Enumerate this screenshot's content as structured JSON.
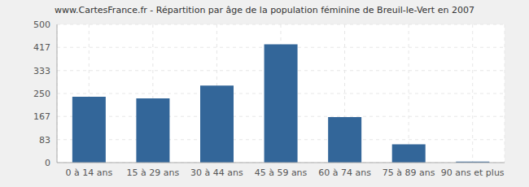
{
  "chart_data": {
    "type": "bar",
    "title": "www.CartesFrance.fr - Répartition par âge de la population féminine de Breuil-le-Vert en 2007",
    "categories": [
      "0 à 14 ans",
      "15 à 29 ans",
      "30 à 44 ans",
      "45 à 59 ans",
      "60 à 74 ans",
      "75 à 89 ans",
      "90 ans et plus"
    ],
    "values": [
      238,
      232,
      279,
      428,
      165,
      66,
      4
    ],
    "color": "#336699",
    "ylim": [
      0,
      500
    ],
    "yticks": [
      0,
      83,
      167,
      250,
      333,
      417,
      500
    ],
    "grid": true
  }
}
